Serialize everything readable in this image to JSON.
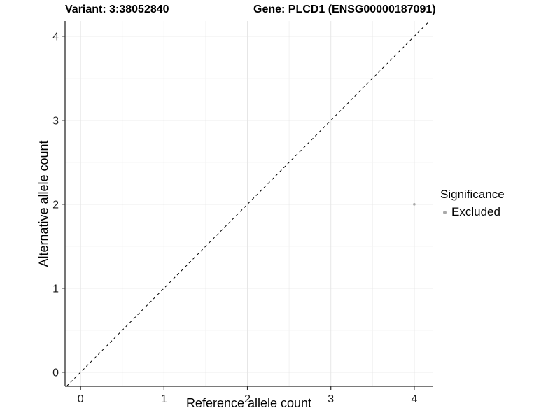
{
  "chart_data": {
    "type": "scatter",
    "title_left": "Variant: 3:38052840",
    "title_right": "Gene: PLCD1 (ENSG00000187091)",
    "xlabel": "Reference allele count",
    "ylabel": "Alternative allele count",
    "xlim": [
      -0.186,
      4.219
    ],
    "ylim": [
      -0.168,
      4.182
    ],
    "x_ticks": [
      0,
      1,
      2,
      3,
      4
    ],
    "y_ticks": [
      0,
      1,
      2,
      3,
      4
    ],
    "grid": "major+minor",
    "legend_position": "right",
    "reference_line": {
      "slope": 1,
      "intercept": 0,
      "style": "dashed",
      "color": "#000000"
    },
    "series": [
      {
        "name": "Excluded",
        "color": "#a9a9a9",
        "points": [
          {
            "x": 4,
            "y": 2
          }
        ]
      }
    ],
    "legend": {
      "title": "Significance",
      "items": [
        {
          "label": "Excluded",
          "color": "#a9a9a9"
        }
      ]
    }
  },
  "colors": {
    "axis_line": "#2b2b2b",
    "tick_label": "#1a1a1a",
    "grid_major": "#e6e6e6",
    "grid_minor": "#f2f2f2",
    "background": "#ffffff"
  }
}
